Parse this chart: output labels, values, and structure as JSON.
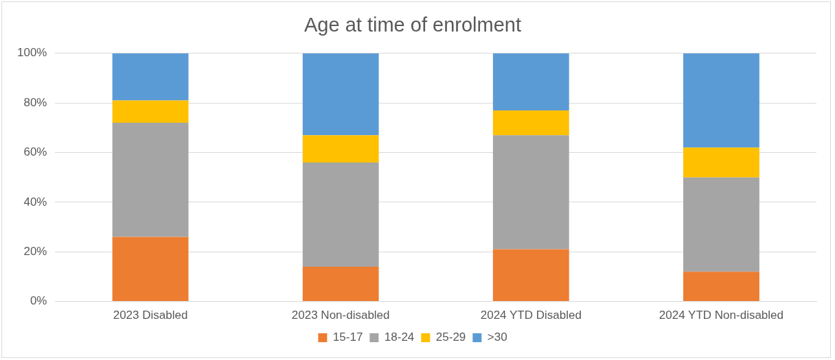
{
  "chart_data": {
    "type": "bar",
    "stacked": true,
    "title": "Age at time of enrolment",
    "categories": [
      "2023 Disabled",
      "2023 Non-disabled",
      "2024 YTD Disabled",
      "2024 YTD Non-disabled"
    ],
    "series": [
      {
        "name": "15-17",
        "color": "#ed7d31",
        "values": [
          26,
          14,
          21,
          12
        ]
      },
      {
        "name": "18-24",
        "color": "#a5a5a5",
        "values": [
          46,
          42,
          46,
          38
        ]
      },
      {
        "name": "25-29",
        "color": "#ffc000",
        "values": [
          9,
          11,
          10,
          12
        ]
      },
      {
        "name": ">30",
        "color": "#5b9bd5",
        "values": [
          19,
          33,
          23,
          38
        ]
      }
    ],
    "ylim": [
      0,
      100
    ],
    "yticks": [
      {
        "value": 0,
        "label": "0%"
      },
      {
        "value": 20,
        "label": "20%"
      },
      {
        "value": 40,
        "label": "40%"
      },
      {
        "value": 60,
        "label": "60%"
      },
      {
        "value": 80,
        "label": "80%"
      },
      {
        "value": 100,
        "label": "100%"
      }
    ],
    "grid": "y",
    "legend": "bottom"
  }
}
